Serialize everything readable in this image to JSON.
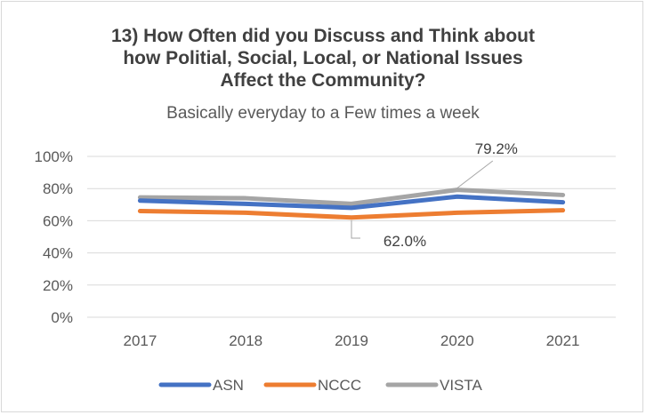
{
  "chart_data": {
    "type": "line",
    "title_lines": [
      "13) How Often did you Discuss and Think about",
      "how Politial, Social, Local, or National Issues",
      "Affect the Community?"
    ],
    "subtitle": "Basically everyday to a Few times a week",
    "x": [
      "2017",
      "2018",
      "2019",
      "2020",
      "2021"
    ],
    "ylim": [
      0,
      100
    ],
    "yticks": [
      {
        "value": 0,
        "label": "0%"
      },
      {
        "value": 20,
        "label": "20%"
      },
      {
        "value": 40,
        "label": "40%"
      },
      {
        "value": 60,
        "label": "60%"
      },
      {
        "value": 80,
        "label": "80%"
      },
      {
        "value": 100,
        "label": "100%"
      }
    ],
    "grid": true,
    "legend_position": "bottom",
    "series": [
      {
        "name": "ASN",
        "color": "#4472C4",
        "values": [
          72.5,
          70.5,
          68.0,
          75.0,
          71.5
        ]
      },
      {
        "name": "NCCC",
        "color": "#ED7D31",
        "values": [
          66.0,
          65.0,
          62.0,
          65.0,
          66.5
        ]
      },
      {
        "name": "VISTA",
        "color": "#A5A5A5",
        "values": [
          74.5,
          74.0,
          70.5,
          79.2,
          76.0
        ]
      }
    ],
    "annotations": [
      {
        "series": "VISTA",
        "index": 3,
        "label": "79.2%"
      },
      {
        "series": "NCCC",
        "index": 2,
        "label": "62.0%"
      }
    ]
  }
}
